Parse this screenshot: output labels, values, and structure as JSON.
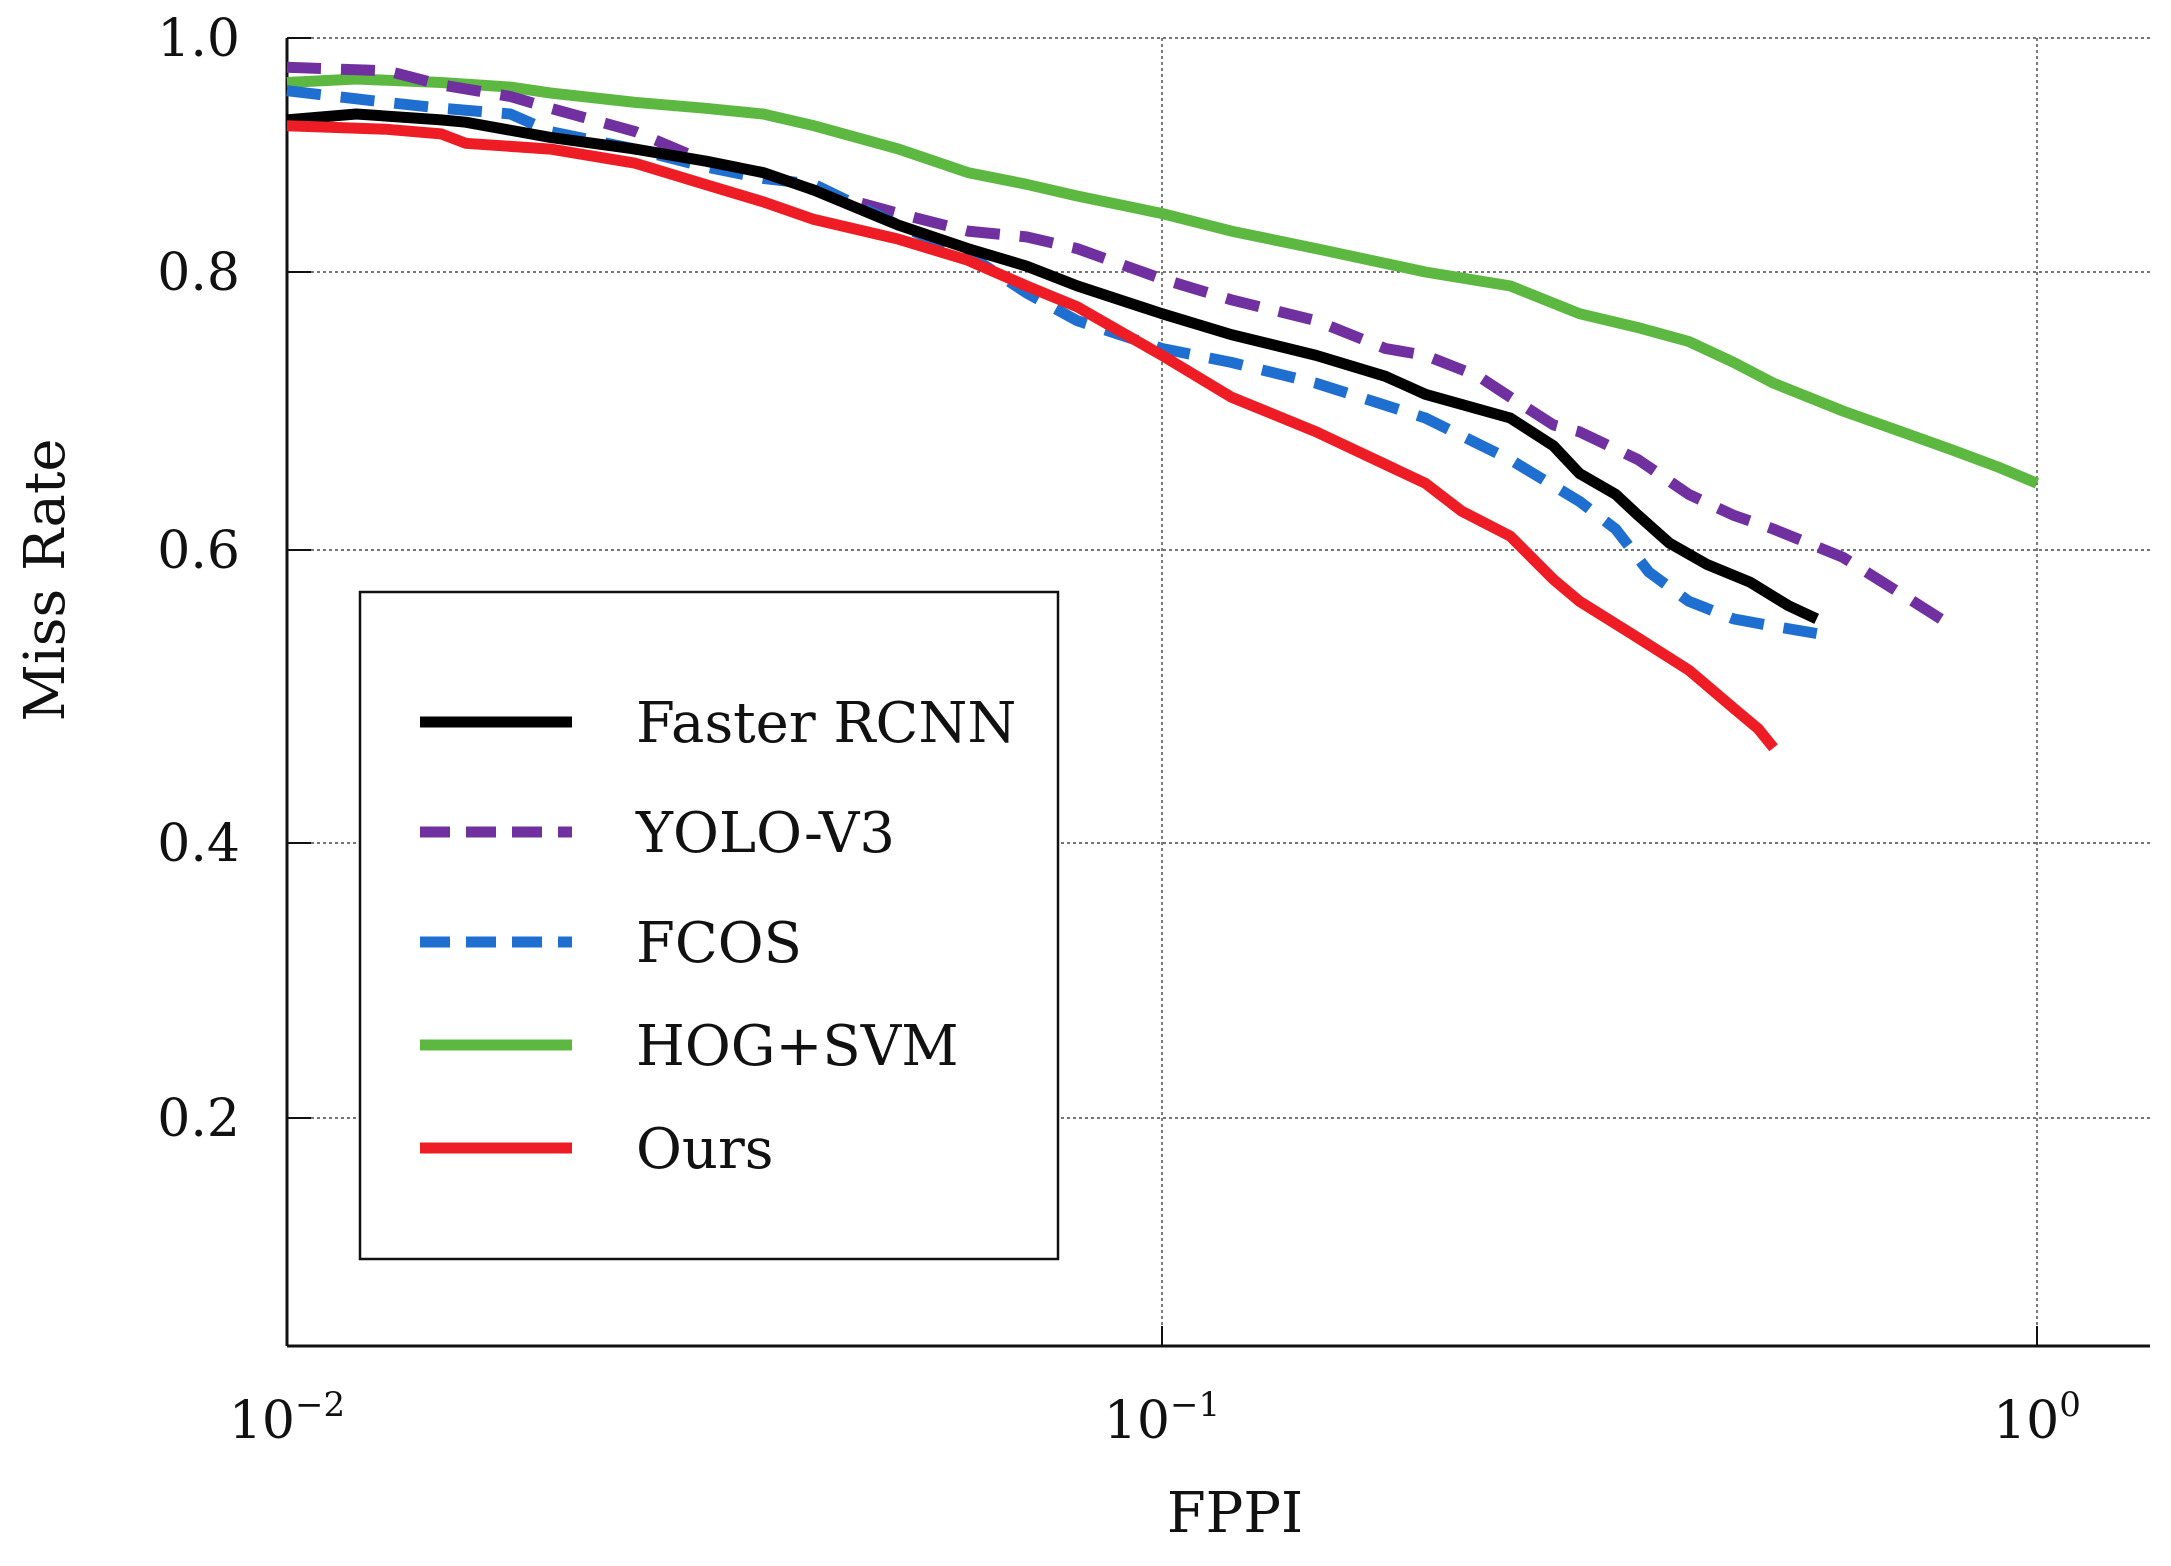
{
  "chart_data": {
    "type": "line",
    "title": "",
    "xlabel": "FPPI",
    "ylabel": "Miss Rate",
    "xscale": "log",
    "xlim": [
      0.01,
      1.4
    ],
    "ylim": [
      0.05,
      1.0
    ],
    "x_ticks": [
      {
        "value": 0.01,
        "base": "10",
        "exponent": "−2"
      },
      {
        "value": 0.1,
        "base": "10",
        "exponent": "−1"
      },
      {
        "value": 1,
        "base": "10",
        "exponent": "0"
      }
    ],
    "y_ticks": [
      {
        "value": 0.2,
        "label": "0.2"
      },
      {
        "value": 0.4,
        "label": "0.4"
      },
      {
        "value": 0.6,
        "label": "0.6"
      },
      {
        "value": 0.8,
        "label": "0.8"
      },
      {
        "value": 1.0,
        "label": "1.0"
      }
    ],
    "grid": true,
    "legend_position": "lower-left",
    "series": [
      {
        "name": "Faster RCNN",
        "color": "#000000",
        "style": "solid",
        "points": [
          [
            0.01,
            0.93
          ],
          [
            0.012,
            0.935
          ],
          [
            0.015,
            0.93
          ],
          [
            0.016,
            0.928
          ],
          [
            0.02,
            0.915
          ],
          [
            0.025,
            0.905
          ],
          [
            0.03,
            0.895
          ],
          [
            0.035,
            0.885
          ],
          [
            0.04,
            0.87
          ],
          [
            0.05,
            0.84
          ],
          [
            0.06,
            0.82
          ],
          [
            0.07,
            0.805
          ],
          [
            0.08,
            0.79
          ],
          [
            0.1,
            0.77
          ],
          [
            0.12,
            0.755
          ],
          [
            0.15,
            0.74
          ],
          [
            0.18,
            0.725
          ],
          [
            0.2,
            0.712
          ],
          [
            0.25,
            0.695
          ],
          [
            0.28,
            0.675
          ],
          [
            0.3,
            0.655
          ],
          [
            0.33,
            0.64
          ],
          [
            0.35,
            0.625
          ],
          [
            0.38,
            0.605
          ],
          [
            0.42,
            0.59
          ],
          [
            0.47,
            0.578
          ],
          [
            0.52,
            0.562
          ],
          [
            0.56,
            0.553
          ]
        ]
      },
      {
        "name": "YOLO-V3",
        "color": "#7030A0",
        "style": "dashed",
        "points": [
          [
            0.01,
            0.975
          ],
          [
            0.013,
            0.972
          ],
          [
            0.015,
            0.96
          ],
          [
            0.018,
            0.95
          ],
          [
            0.02,
            0.94
          ],
          [
            0.025,
            0.92
          ],
          [
            0.03,
            0.895
          ],
          [
            0.035,
            0.885
          ],
          [
            0.04,
            0.87
          ],
          [
            0.05,
            0.85
          ],
          [
            0.06,
            0.835
          ],
          [
            0.07,
            0.83
          ],
          [
            0.08,
            0.82
          ],
          [
            0.1,
            0.795
          ],
          [
            0.12,
            0.78
          ],
          [
            0.15,
            0.765
          ],
          [
            0.18,
            0.745
          ],
          [
            0.2,
            0.74
          ],
          [
            0.23,
            0.725
          ],
          [
            0.25,
            0.71
          ],
          [
            0.28,
            0.69
          ],
          [
            0.3,
            0.685
          ],
          [
            0.35,
            0.665
          ],
          [
            0.4,
            0.64
          ],
          [
            0.45,
            0.625
          ],
          [
            0.5,
            0.615
          ],
          [
            0.6,
            0.595
          ],
          [
            0.7,
            0.57
          ],
          [
            0.8,
            0.548
          ]
        ]
      },
      {
        "name": "FCOS",
        "color": "#1F6FD0",
        "style": "dashed",
        "points": [
          [
            0.01,
            0.955
          ],
          [
            0.013,
            0.945
          ],
          [
            0.015,
            0.94
          ],
          [
            0.018,
            0.935
          ],
          [
            0.02,
            0.92
          ],
          [
            0.025,
            0.905
          ],
          [
            0.03,
            0.89
          ],
          [
            0.035,
            0.88
          ],
          [
            0.04,
            0.875
          ],
          [
            0.05,
            0.84
          ],
          [
            0.06,
            0.815
          ],
          [
            0.07,
            0.785
          ],
          [
            0.08,
            0.765
          ],
          [
            0.1,
            0.745
          ],
          [
            0.12,
            0.735
          ],
          [
            0.15,
            0.72
          ],
          [
            0.2,
            0.695
          ],
          [
            0.25,
            0.665
          ],
          [
            0.3,
            0.635
          ],
          [
            0.33,
            0.615
          ],
          [
            0.36,
            0.585
          ],
          [
            0.4,
            0.565
          ],
          [
            0.45,
            0.553
          ],
          [
            0.5,
            0.548
          ],
          [
            0.56,
            0.543
          ]
        ]
      },
      {
        "name": "HOG+SVM",
        "color": "#5DB842",
        "style": "solid",
        "points": [
          [
            0.01,
            0.962
          ],
          [
            0.012,
            0.965
          ],
          [
            0.015,
            0.962
          ],
          [
            0.018,
            0.958
          ],
          [
            0.02,
            0.953
          ],
          [
            0.025,
            0.945
          ],
          [
            0.03,
            0.94
          ],
          [
            0.035,
            0.935
          ],
          [
            0.04,
            0.925
          ],
          [
            0.05,
            0.905
          ],
          [
            0.06,
            0.885
          ],
          [
            0.07,
            0.875
          ],
          [
            0.08,
            0.865
          ],
          [
            0.1,
            0.85
          ],
          [
            0.12,
            0.835
          ],
          [
            0.15,
            0.82
          ],
          [
            0.2,
            0.8
          ],
          [
            0.25,
            0.79
          ],
          [
            0.3,
            0.77
          ],
          [
            0.35,
            0.76
          ],
          [
            0.4,
            0.75
          ],
          [
            0.45,
            0.735
          ],
          [
            0.5,
            0.72
          ],
          [
            0.6,
            0.7
          ],
          [
            0.7,
            0.685
          ],
          [
            0.8,
            0.672
          ],
          [
            0.9,
            0.66
          ],
          [
            1.0,
            0.648
          ]
        ]
      },
      {
        "name": "Ours",
        "color": "#EE1C24",
        "style": "solid",
        "points": [
          [
            0.01,
            0.925
          ],
          [
            0.013,
            0.922
          ],
          [
            0.015,
            0.918
          ],
          [
            0.016,
            0.91
          ],
          [
            0.02,
            0.905
          ],
          [
            0.025,
            0.893
          ],
          [
            0.03,
            0.875
          ],
          [
            0.035,
            0.86
          ],
          [
            0.04,
            0.845
          ],
          [
            0.05,
            0.828
          ],
          [
            0.06,
            0.81
          ],
          [
            0.07,
            0.79
          ],
          [
            0.08,
            0.775
          ],
          [
            0.1,
            0.74
          ],
          [
            0.12,
            0.71
          ],
          [
            0.15,
            0.685
          ],
          [
            0.2,
            0.648
          ],
          [
            0.22,
            0.628
          ],
          [
            0.25,
            0.61
          ],
          [
            0.28,
            0.58
          ],
          [
            0.3,
            0.565
          ],
          [
            0.35,
            0.54
          ],
          [
            0.4,
            0.518
          ],
          [
            0.45,
            0.492
          ],
          [
            0.48,
            0.478
          ],
          [
            0.5,
            0.465
          ]
        ]
      }
    ]
  }
}
